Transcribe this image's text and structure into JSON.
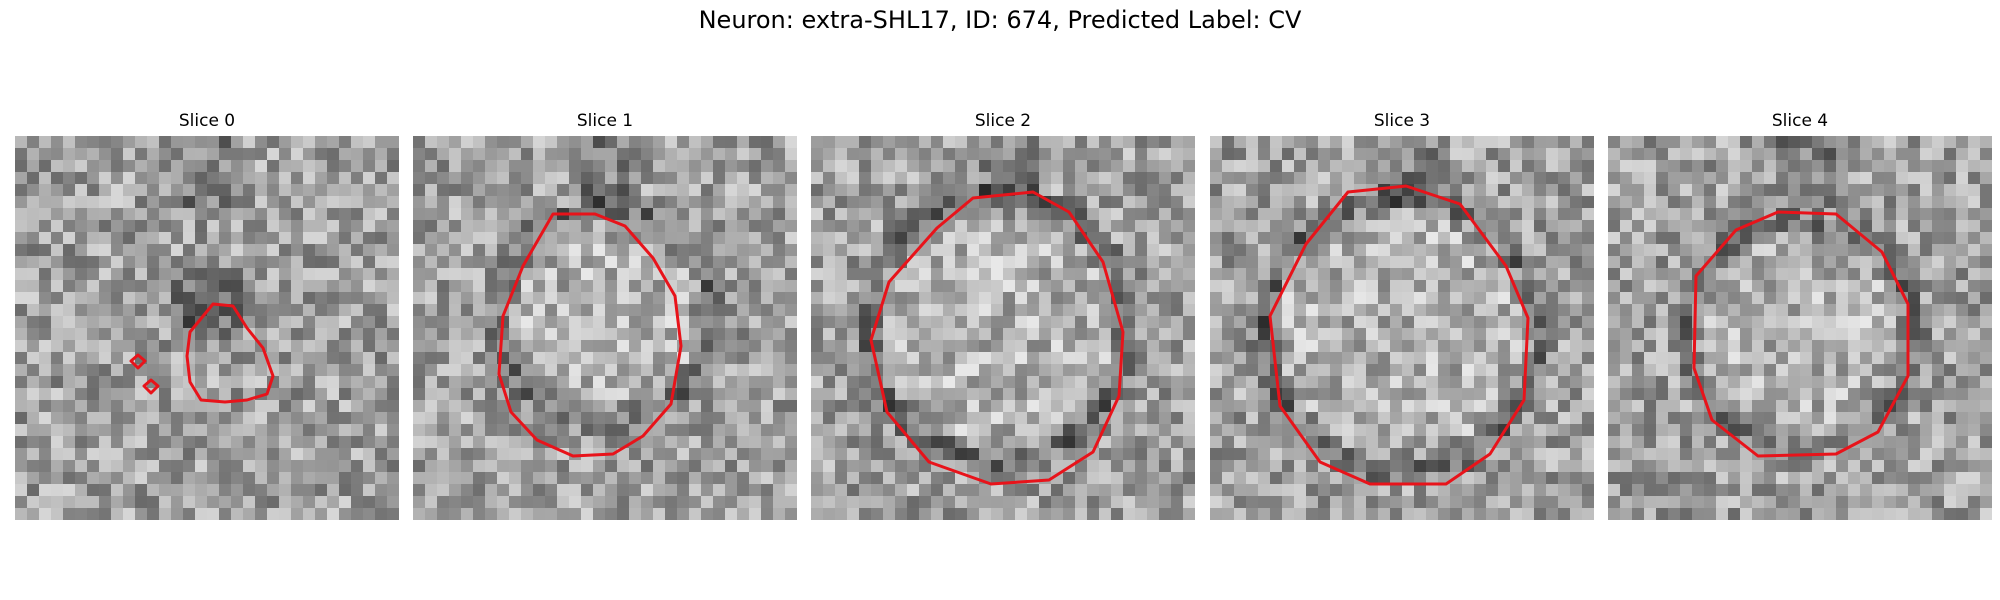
{
  "figure": {
    "title": "Neuron: extra-SHL17, ID: 674, Predicted Label: CV",
    "contour_color": "#e8131a",
    "colormap": "grayscale"
  },
  "slices": [
    {
      "label": "Slice 0"
    },
    {
      "label": "Slice 1"
    },
    {
      "label": "Slice 2"
    },
    {
      "label": "Slice 3"
    },
    {
      "label": "Slice 4"
    }
  ]
}
